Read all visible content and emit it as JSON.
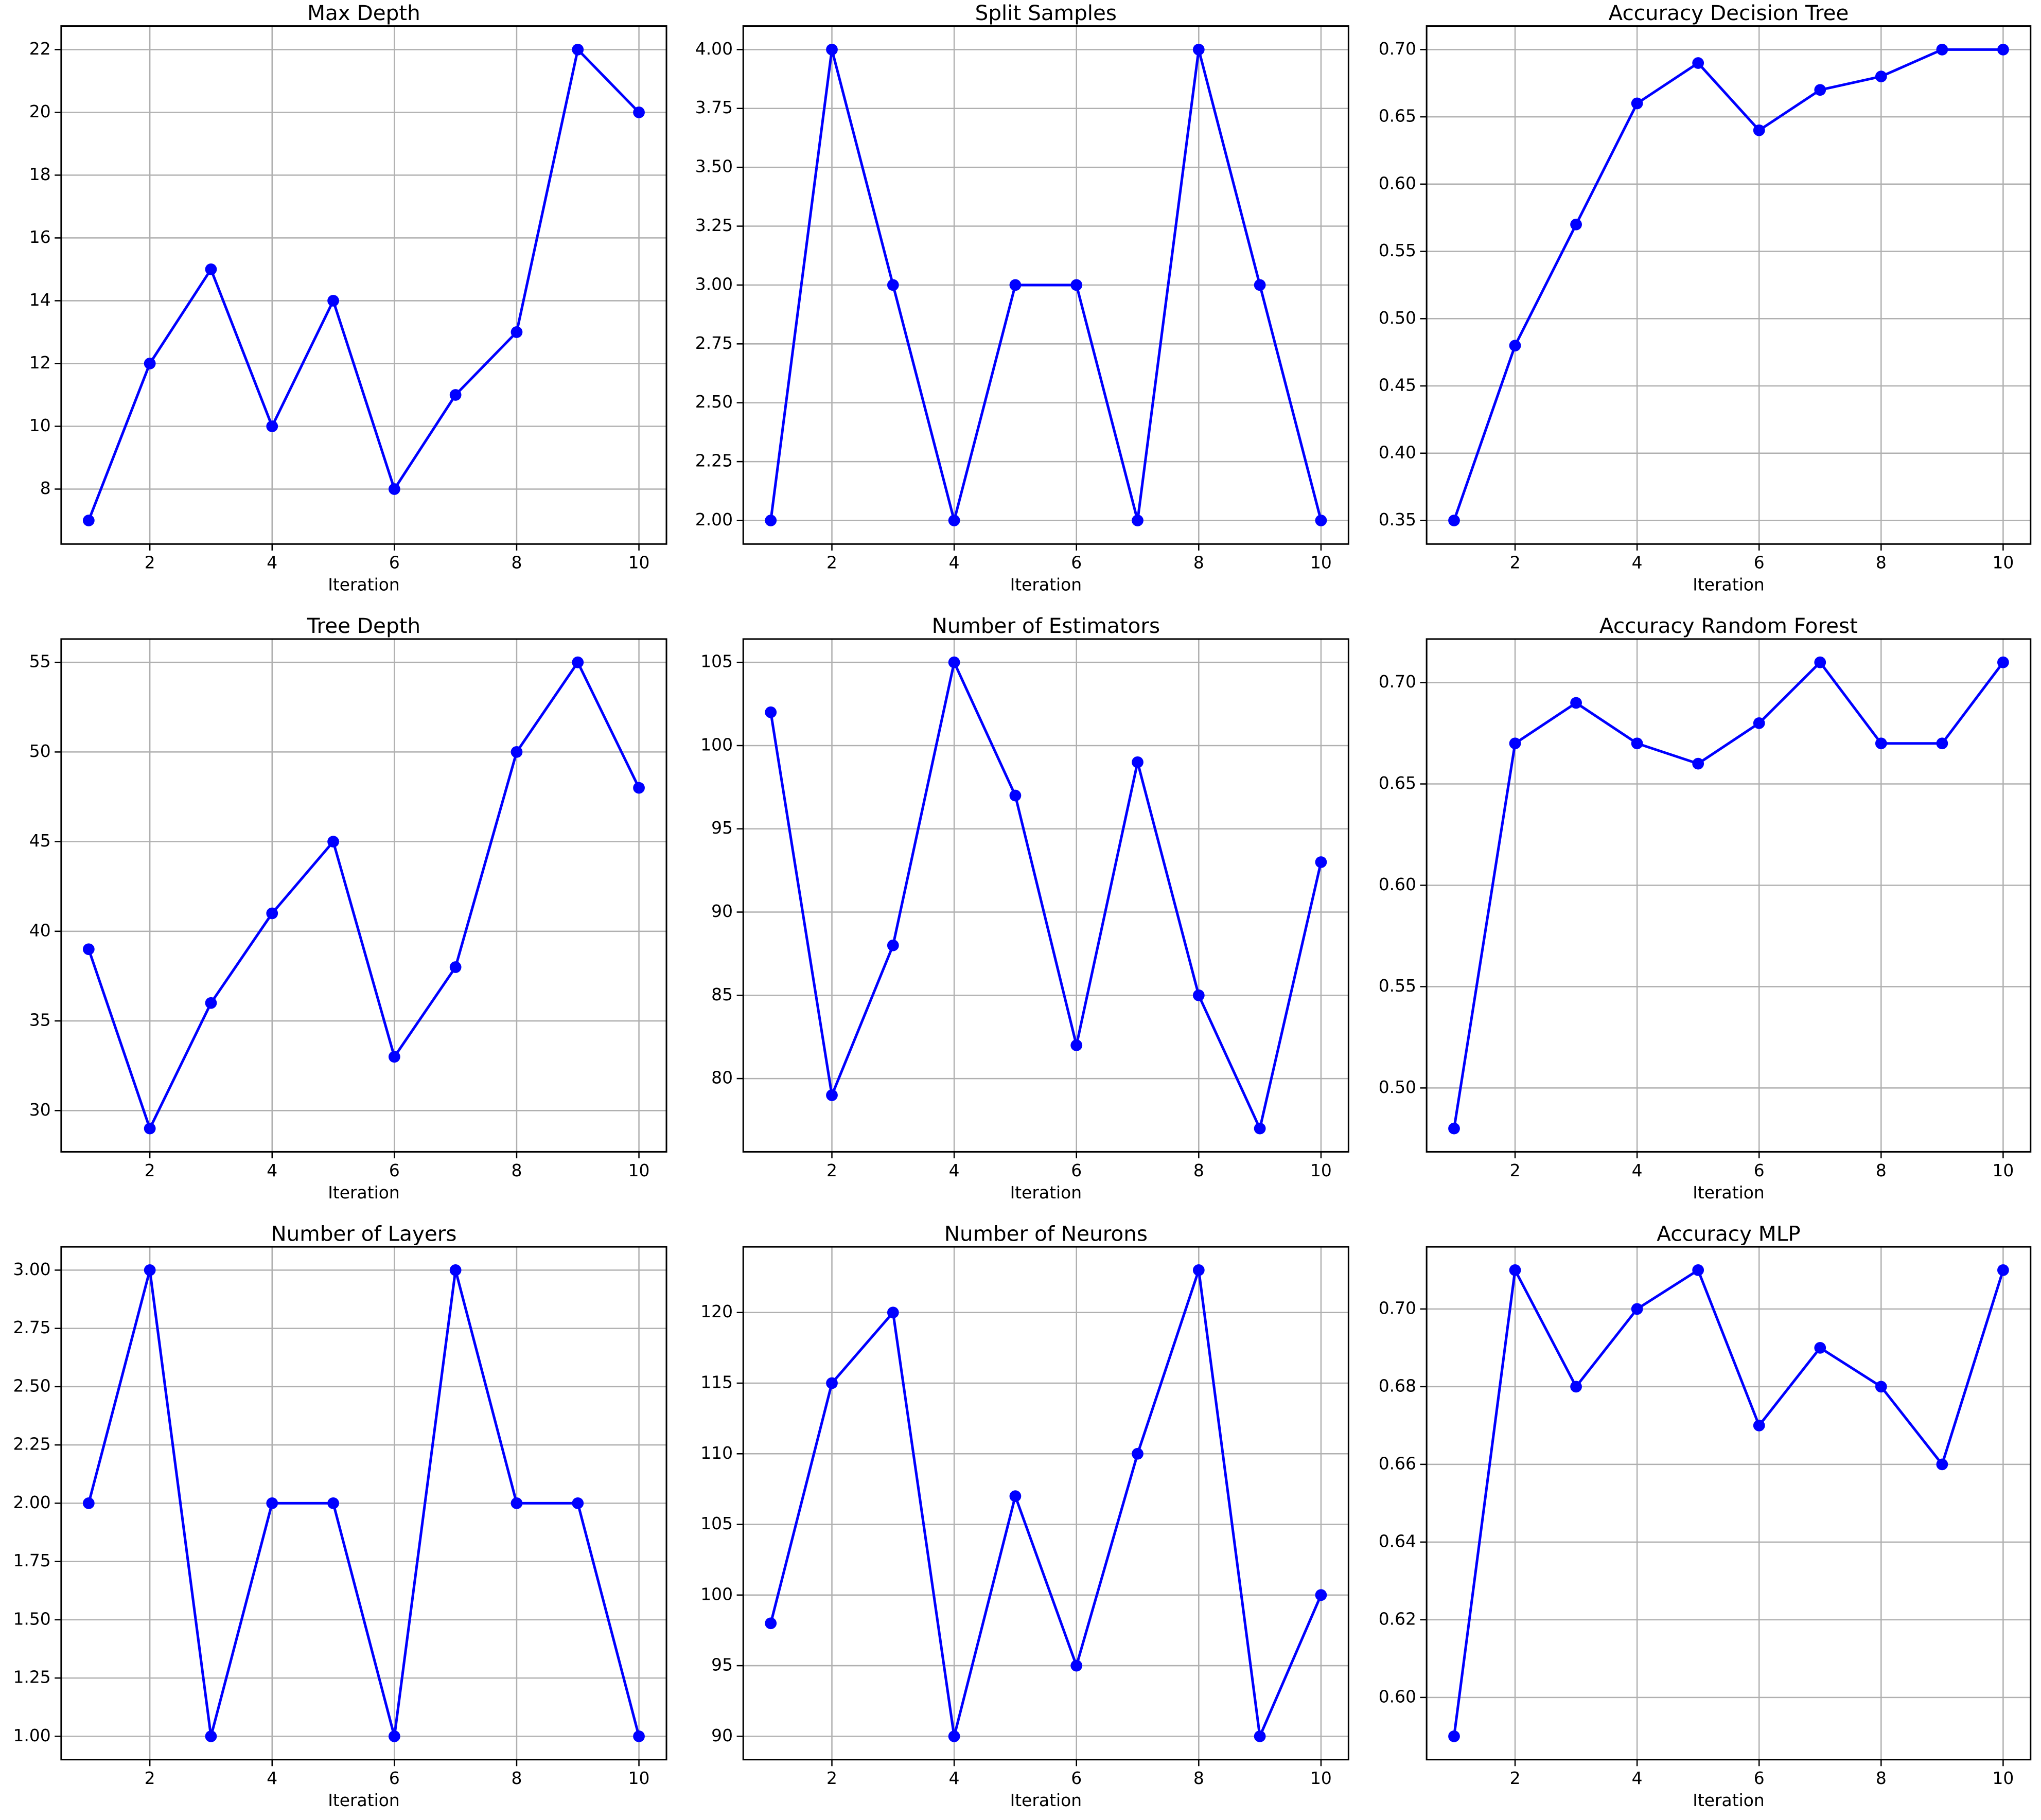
{
  "chart_data": [
    {
      "type": "line",
      "title": "Max Depth",
      "x_label": "Iteration",
      "x": [
        1,
        2,
        3,
        4,
        5,
        6,
        7,
        8,
        9,
        10
      ],
      "values": [
        7,
        12,
        15,
        10,
        14,
        8,
        11,
        13,
        22,
        20
      ],
      "color": "#0000ff",
      "xlim": [
        0.55,
        10.45
      ],
      "xticks": [
        2,
        4,
        6,
        8,
        10
      ],
      "ylim": [
        6.25,
        22.75
      ],
      "yticks": [
        8,
        10,
        12,
        14,
        16,
        18,
        20,
        22
      ],
      "grid": true
    },
    {
      "type": "line",
      "title": "Split Samples",
      "x_label": "Iteration",
      "x": [
        1,
        2,
        3,
        4,
        5,
        6,
        7,
        8,
        9,
        10
      ],
      "values": [
        2,
        4,
        3,
        2,
        3,
        3,
        2,
        4,
        3,
        2
      ],
      "color": "#0000ff",
      "xlim": [
        0.55,
        10.45
      ],
      "xticks": [
        2,
        4,
        6,
        8,
        10
      ],
      "ylim": [
        1.9,
        4.1
      ],
      "yticks": [
        {
          "value": 2,
          "label": "2.00"
        },
        {
          "value": 2.25,
          "label": "2.25"
        },
        {
          "value": 2.5,
          "label": "2.50"
        },
        {
          "value": 2.75,
          "label": "2.75"
        },
        {
          "value": 3,
          "label": "3.00"
        },
        {
          "value": 3.25,
          "label": "3.25"
        },
        {
          "value": 3.5,
          "label": "3.50"
        },
        {
          "value": 3.75,
          "label": "3.75"
        },
        {
          "value": 4,
          "label": "4.00"
        }
      ],
      "grid": true
    },
    {
      "type": "line",
      "title": "Accuracy Decision Tree",
      "x_label": "Iteration",
      "x": [
        1,
        2,
        3,
        4,
        5,
        6,
        7,
        8,
        9,
        10
      ],
      "values": [
        0.35,
        0.48,
        0.57,
        0.66,
        0.69,
        0.64,
        0.67,
        0.68,
        0.7,
        0.7
      ],
      "color": "#0000ff",
      "xlim": [
        0.55,
        10.45
      ],
      "xticks": [
        2,
        4,
        6,
        8,
        10
      ],
      "ylim": [
        0.3325,
        0.7175
      ],
      "yticks": [
        0.35,
        {
          "value": 0.4,
          "label": "0.40"
        },
        0.45,
        {
          "value": 0.5,
          "label": "0.50"
        },
        0.55,
        {
          "value": 0.6,
          "label": "0.60"
        },
        0.65,
        {
          "value": 0.7,
          "label": "0.70"
        }
      ],
      "grid": true
    },
    {
      "type": "line",
      "title": "Tree Depth",
      "x_label": "Iteration",
      "x": [
        1,
        2,
        3,
        4,
        5,
        6,
        7,
        8,
        9,
        10
      ],
      "values": [
        39,
        29,
        36,
        41,
        45,
        33,
        38,
        50,
        55,
        48
      ],
      "color": "#0000ff",
      "xlim": [
        0.55,
        10.45
      ],
      "xticks": [
        2,
        4,
        6,
        8,
        10
      ],
      "ylim": [
        27.7,
        56.3
      ],
      "yticks": [
        30,
        35,
        40,
        45,
        50,
        55
      ],
      "grid": true
    },
    {
      "type": "line",
      "title": "Number of Estimators",
      "x_label": "Iteration",
      "x": [
        1,
        2,
        3,
        4,
        5,
        6,
        7,
        8,
        9,
        10
      ],
      "values": [
        102,
        79,
        88,
        105,
        97,
        82,
        99,
        85,
        77,
        93
      ],
      "color": "#0000ff",
      "xlim": [
        0.55,
        10.45
      ],
      "xticks": [
        2,
        4,
        6,
        8,
        10
      ],
      "ylim": [
        75.6,
        106.4
      ],
      "yticks": [
        80,
        85,
        90,
        95,
        100,
        105
      ],
      "grid": true
    },
    {
      "type": "line",
      "title": "Accuracy Random Forest",
      "x_label": "Iteration",
      "x": [
        1,
        2,
        3,
        4,
        5,
        6,
        7,
        8,
        9,
        10
      ],
      "values": [
        0.48,
        0.67,
        0.69,
        0.67,
        0.66,
        0.68,
        0.71,
        0.67,
        0.67,
        0.71
      ],
      "color": "#0000ff",
      "xlim": [
        0.55,
        10.45
      ],
      "xticks": [
        2,
        4,
        6,
        8,
        10
      ],
      "ylim": [
        0.4685,
        0.7215
      ],
      "yticks": [
        {
          "value": 0.5,
          "label": "0.50"
        },
        0.55,
        {
          "value": 0.6,
          "label": "0.60"
        },
        0.65,
        {
          "value": 0.7,
          "label": "0.70"
        }
      ],
      "grid": true
    },
    {
      "type": "line",
      "title": "Number of Layers",
      "x_label": "Iteration",
      "x": [
        1,
        2,
        3,
        4,
        5,
        6,
        7,
        8,
        9,
        10
      ],
      "values": [
        2,
        3,
        1,
        2,
        2,
        1,
        3,
        2,
        2,
        1
      ],
      "color": "#0000ff",
      "xlim": [
        0.55,
        10.45
      ],
      "xticks": [
        2,
        4,
        6,
        8,
        10
      ],
      "ylim": [
        0.9,
        3.1
      ],
      "yticks": [
        {
          "value": 1,
          "label": "1.00"
        },
        {
          "value": 1.25,
          "label": "1.25"
        },
        {
          "value": 1.5,
          "label": "1.50"
        },
        {
          "value": 1.75,
          "label": "1.75"
        },
        {
          "value": 2,
          "label": "2.00"
        },
        {
          "value": 2.25,
          "label": "2.25"
        },
        {
          "value": 2.5,
          "label": "2.50"
        },
        {
          "value": 2.75,
          "label": "2.75"
        },
        {
          "value": 3,
          "label": "3.00"
        }
      ],
      "grid": true
    },
    {
      "type": "line",
      "title": "Number of Neurons",
      "x_label": "Iteration",
      "x": [
        1,
        2,
        3,
        4,
        5,
        6,
        7,
        8,
        9,
        10
      ],
      "values": [
        98,
        115,
        120,
        90,
        107,
        95,
        110,
        123,
        90,
        100
      ],
      "color": "#0000ff",
      "xlim": [
        0.55,
        10.45
      ],
      "xticks": [
        2,
        4,
        6,
        8,
        10
      ],
      "ylim": [
        88.35,
        124.65
      ],
      "yticks": [
        90,
        95,
        100,
        105,
        110,
        115,
        120
      ],
      "grid": true
    },
    {
      "type": "line",
      "title": "Accuracy MLP",
      "x_label": "Iteration",
      "x": [
        1,
        2,
        3,
        4,
        5,
        6,
        7,
        8,
        9,
        10
      ],
      "values": [
        0.59,
        0.71,
        0.68,
        0.7,
        0.71,
        0.67,
        0.69,
        0.68,
        0.66,
        0.71
      ],
      "color": "#0000ff",
      "xlim": [
        0.55,
        10.45
      ],
      "xticks": [
        2,
        4,
        6,
        8,
        10
      ],
      "ylim": [
        0.584,
        0.716
      ],
      "yticks": [
        {
          "value": 0.6,
          "label": "0.60"
        },
        0.62,
        0.64,
        0.66,
        0.68,
        {
          "value": 0.7,
          "label": "0.70"
        }
      ],
      "grid": true
    }
  ]
}
